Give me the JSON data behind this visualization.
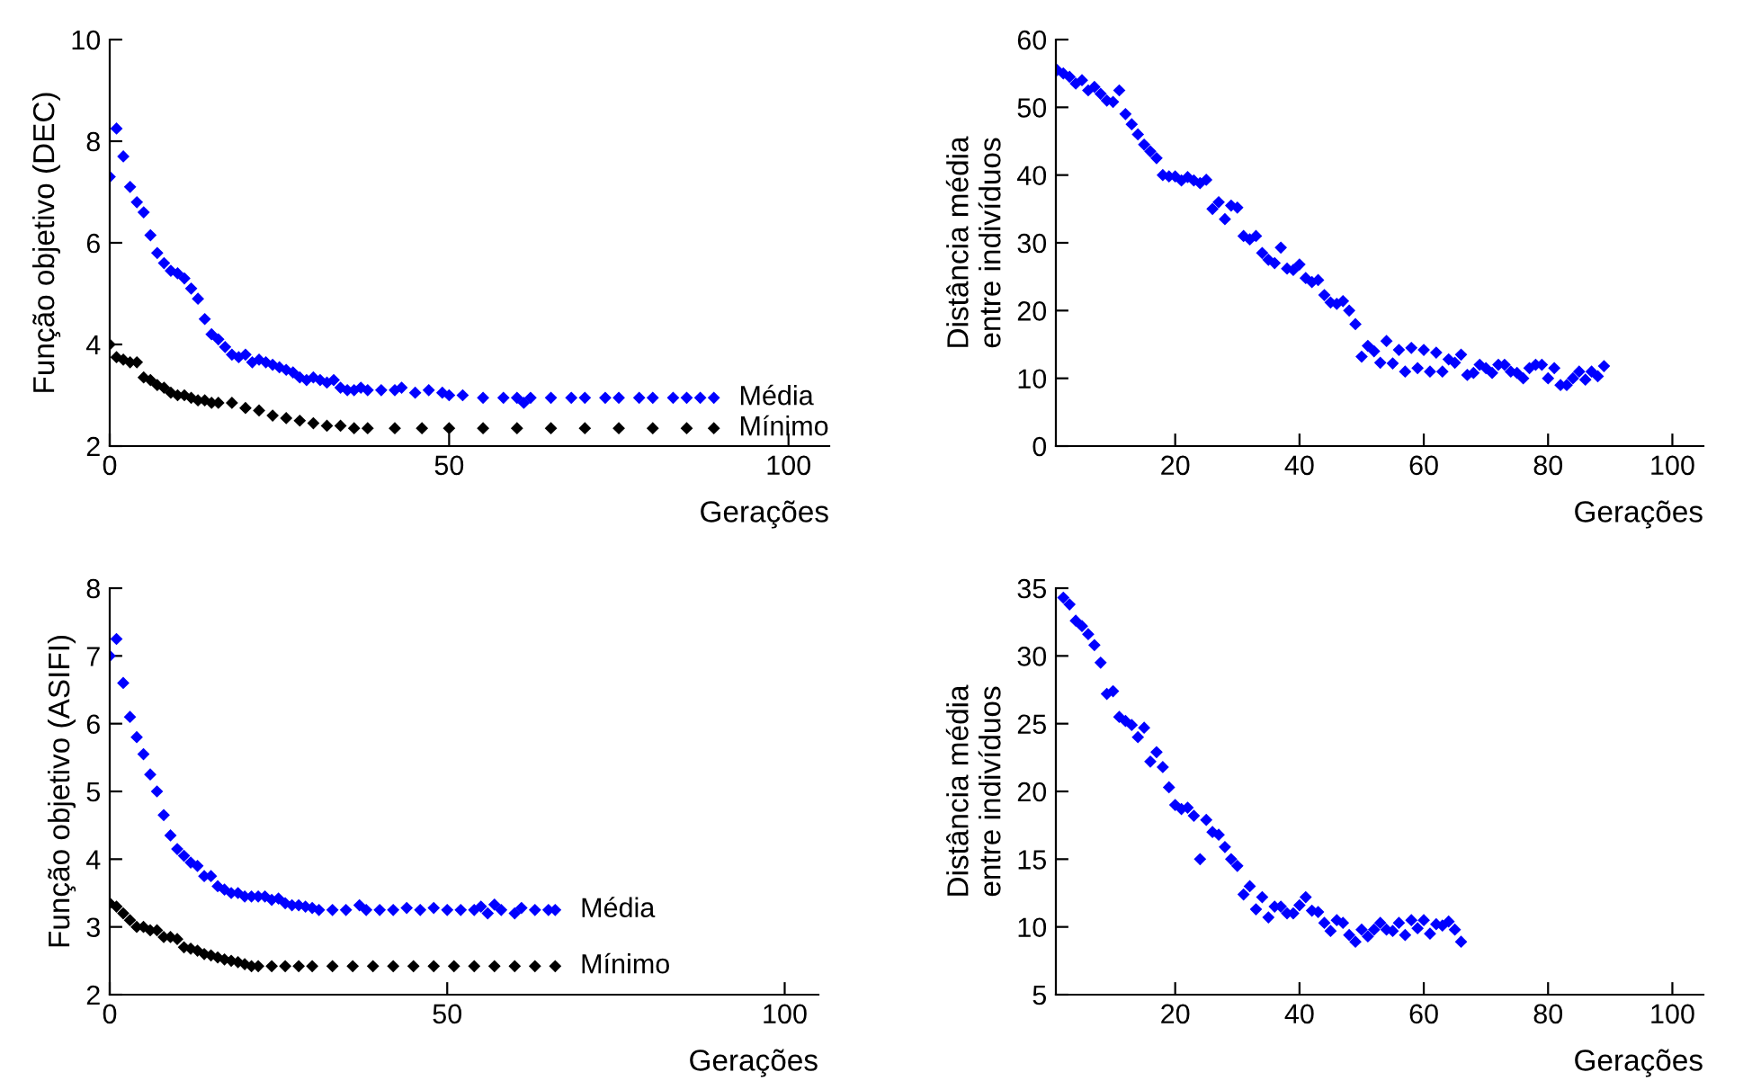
{
  "chart_data": [
    {
      "type": "scatter",
      "xlabel": "Gerações",
      "ylabel": "Função objetivo (DEC)",
      "xlim": [
        0,
        106
      ],
      "ylim": [
        2,
        10
      ],
      "xticks": [
        0,
        50,
        100
      ],
      "yticks": [
        2,
        4,
        6,
        8,
        10
      ],
      "marker": "diamond",
      "grid": false,
      "legend": false,
      "series": [
        {
          "name": "Média",
          "color": "#0000ff",
          "x": [
            0,
            1,
            2,
            3,
            4,
            5,
            6,
            7,
            8,
            9,
            10,
            11,
            12,
            13,
            14,
            15,
            16,
            17,
            18,
            19,
            20,
            21,
            22,
            23,
            24,
            25,
            26,
            27,
            28,
            29,
            30,
            31,
            32,
            33,
            34,
            35,
            36,
            37,
            38,
            40,
            42,
            43,
            45,
            47,
            49,
            50,
            52,
            55,
            58,
            60,
            61,
            62,
            65,
            68,
            70,
            73,
            75,
            78,
            80,
            83,
            85,
            87,
            89
          ],
          "values": [
            7.3,
            8.25,
            7.7,
            7.1,
            6.8,
            6.6,
            6.15,
            5.8,
            5.6,
            5.45,
            5.4,
            5.3,
            5.1,
            4.9,
            4.5,
            4.2,
            4.1,
            3.95,
            3.8,
            3.75,
            3.8,
            3.65,
            3.7,
            3.65,
            3.6,
            3.55,
            3.5,
            3.45,
            3.35,
            3.3,
            3.35,
            3.3,
            3.25,
            3.3,
            3.15,
            3.1,
            3.1,
            3.15,
            3.1,
            3.1,
            3.1,
            3.15,
            3.05,
            3.1,
            3.05,
            3.0,
            3.0,
            2.95,
            2.95,
            2.95,
            2.85,
            2.95,
            2.95,
            2.95,
            2.95,
            2.95,
            2.95,
            2.95,
            2.95,
            2.95,
            2.95,
            2.95,
            2.95
          ]
        },
        {
          "name": "Mínimo",
          "color": "#000000",
          "x": [
            0,
            1,
            2,
            3,
            4,
            5,
            6,
            7,
            8,
            9,
            10,
            11,
            12,
            13,
            14,
            15,
            16,
            18,
            20,
            22,
            24,
            26,
            28,
            30,
            32,
            34,
            36,
            38,
            42,
            46,
            50,
            55,
            60,
            65,
            70,
            75,
            80,
            85,
            89
          ],
          "values": [
            4.0,
            3.75,
            3.7,
            3.65,
            3.65,
            3.35,
            3.3,
            3.2,
            3.15,
            3.05,
            3.0,
            3.0,
            2.95,
            2.9,
            2.9,
            2.85,
            2.85,
            2.85,
            2.75,
            2.7,
            2.6,
            2.55,
            2.5,
            2.45,
            2.4,
            2.4,
            2.35,
            2.35,
            2.35,
            2.35,
            2.35,
            2.35,
            2.35,
            2.35,
            2.35,
            2.35,
            2.35,
            2.35,
            2.35
          ]
        }
      ]
    },
    {
      "type": "scatter",
      "xlabel": "Gerações",
      "ylabel": "Distância média\nentre indivíduos",
      "xlim": [
        0.8,
        105
      ],
      "ylim": [
        0,
        60
      ],
      "xticks": [
        20,
        40,
        60,
        80,
        100
      ],
      "yticks": [
        0,
        10,
        20,
        30,
        40,
        50,
        60
      ],
      "marker": "diamond",
      "grid": false,
      "legend": false,
      "series": [
        {
          "color": "#0000ff",
          "x": [
            1,
            2,
            3,
            4,
            5,
            6,
            7,
            8,
            9,
            10,
            11,
            12,
            13,
            14,
            15,
            16,
            17,
            18,
            19,
            20,
            21,
            22,
            23,
            24,
            25,
            26,
            27,
            28,
            29,
            30,
            31,
            32,
            33,
            34,
            35,
            36,
            37,
            38,
            39,
            40,
            41,
            42,
            43,
            44,
            45,
            46,
            47,
            48,
            49,
            50,
            51,
            52,
            53,
            54,
            55,
            56,
            57,
            58,
            59,
            60,
            61,
            62,
            63,
            64,
            65,
            66,
            67,
            68,
            69,
            70,
            71,
            72,
            73,
            74,
            75,
            76,
            77,
            78,
            79,
            80,
            81,
            82,
            83,
            84,
            85,
            86,
            87,
            88,
            89
          ],
          "values": [
            55.5,
            55,
            54.5,
            53.5,
            54,
            52.5,
            53,
            52,
            51,
            50.8,
            52.5,
            49,
            47.5,
            46,
            44.5,
            43.5,
            42.5,
            40,
            39.8,
            39.8,
            39.2,
            39.7,
            39.2,
            38.8,
            39.3,
            35,
            36,
            33.5,
            35.5,
            35.2,
            31,
            30.5,
            31,
            28.5,
            27.5,
            27,
            29.3,
            26.2,
            26,
            26.8,
            24.8,
            24.2,
            24.5,
            22.3,
            21.2,
            21,
            21.4,
            20,
            18,
            13.2,
            14.8,
            14,
            12.3,
            15.5,
            12.2,
            14.2,
            11,
            14.5,
            11.5,
            14.2,
            11,
            13.8,
            11,
            12.8,
            12.3,
            13.5,
            10.5,
            10.8,
            12,
            11.5,
            10.8,
            12,
            12,
            11,
            10.8,
            10,
            11.5,
            12,
            12,
            10,
            11.5,
            9,
            9,
            10,
            11,
            9.8,
            11,
            10.3,
            11.8
          ]
        }
      ]
    },
    {
      "type": "scatter",
      "xlabel": "Gerações",
      "ylabel": "Função objetivo (ASIFI)",
      "xlim": [
        0,
        105
      ],
      "ylim": [
        2,
        8
      ],
      "xticks": [
        0,
        50,
        100
      ],
      "yticks": [
        2,
        3,
        4,
        5,
        6,
        7,
        8
      ],
      "marker": "diamond",
      "grid": false,
      "legend": false,
      "series": [
        {
          "name": "Média",
          "color": "#0000ff",
          "x": [
            0,
            1,
            2,
            3,
            4,
            5,
            6,
            7,
            8,
            9,
            10,
            11,
            12,
            13,
            14,
            15,
            16,
            17,
            18,
            19,
            20,
            21,
            22,
            23,
            24,
            25,
            26,
            27,
            28,
            29,
            30,
            31,
            33,
            35,
            37,
            38,
            40,
            42,
            44,
            46,
            48,
            50,
            52,
            54,
            55,
            56,
            57,
            58,
            60,
            61,
            63,
            65,
            66
          ],
          "values": [
            7.0,
            7.25,
            6.6,
            6.1,
            5.8,
            5.55,
            5.25,
            5.0,
            4.65,
            4.35,
            4.15,
            4.05,
            3.95,
            3.9,
            3.75,
            3.75,
            3.6,
            3.55,
            3.5,
            3.5,
            3.45,
            3.45,
            3.45,
            3.45,
            3.4,
            3.42,
            3.35,
            3.32,
            3.32,
            3.3,
            3.28,
            3.25,
            3.25,
            3.25,
            3.32,
            3.25,
            3.25,
            3.25,
            3.28,
            3.25,
            3.28,
            3.25,
            3.25,
            3.25,
            3.3,
            3.2,
            3.33,
            3.25,
            3.2,
            3.28,
            3.25,
            3.25,
            3.25
          ]
        },
        {
          "name": "Mínimo",
          "color": "#000000",
          "x": [
            0,
            1,
            2,
            3,
            4,
            5,
            6,
            7,
            8,
            9,
            10,
            11,
            12,
            13,
            14,
            15,
            16,
            17,
            18,
            19,
            20,
            21,
            22,
            24,
            26,
            28,
            30,
            33,
            36,
            39,
            42,
            45,
            48,
            51,
            54,
            57,
            60,
            63,
            66
          ],
          "values": [
            3.35,
            3.3,
            3.2,
            3.1,
            3.0,
            3.0,
            2.95,
            2.95,
            2.85,
            2.85,
            2.82,
            2.7,
            2.68,
            2.65,
            2.6,
            2.58,
            2.55,
            2.52,
            2.5,
            2.48,
            2.45,
            2.42,
            2.42,
            2.42,
            2.42,
            2.42,
            2.42,
            2.42,
            2.42,
            2.42,
            2.42,
            2.42,
            2.42,
            2.42,
            2.42,
            2.42,
            2.42,
            2.42,
            2.42
          ]
        }
      ]
    },
    {
      "type": "scatter",
      "xlabel": "Gerações",
      "ylabel": "Distância média\nentre indivíduos",
      "xlim": [
        0.8,
        105
      ],
      "ylim": [
        5,
        35
      ],
      "xticks": [
        20,
        40,
        60,
        80,
        100
      ],
      "yticks": [
        5,
        10,
        15,
        20,
        25,
        30,
        35
      ],
      "marker": "diamond",
      "grid": false,
      "legend": false,
      "series": [
        {
          "color": "#0000ff",
          "x": [
            2,
            3,
            4,
            5,
            6,
            7,
            8,
            9,
            10,
            11,
            12,
            13,
            14,
            15,
            16,
            17,
            18,
            19,
            20,
            21,
            22,
            23,
            24,
            25,
            26,
            27,
            28,
            29,
            30,
            31,
            32,
            33,
            34,
            35,
            36,
            37,
            38,
            39,
            40,
            41,
            42,
            43,
            44,
            45,
            46,
            47,
            48,
            49,
            50,
            51,
            52,
            53,
            54,
            55,
            56,
            57,
            58,
            59,
            60,
            61,
            62,
            63,
            64,
            65,
            66
          ],
          "values": [
            34.3,
            33.8,
            32.6,
            32.2,
            31.6,
            30.8,
            29.5,
            27.2,
            27.4,
            25.5,
            25.2,
            24.9,
            24,
            24.7,
            22.2,
            22.9,
            21.8,
            20.3,
            19,
            18.7,
            18.8,
            18.2,
            15,
            17.9,
            17,
            16.8,
            15.9,
            15,
            14.5,
            12.4,
            13,
            11.3,
            12.2,
            10.7,
            11.5,
            11.5,
            11,
            11,
            11.6,
            12.2,
            11.2,
            11.1,
            10.3,
            9.7,
            10.5,
            10.3,
            9.4,
            8.9,
            9.8,
            9.3,
            9.8,
            10.3,
            9.8,
            9.7,
            10.3,
            9.4,
            10.5,
            9.9,
            10.5,
            9.5,
            10.2,
            10.1,
            10.4,
            9.8,
            8.9
          ]
        }
      ]
    }
  ]
}
